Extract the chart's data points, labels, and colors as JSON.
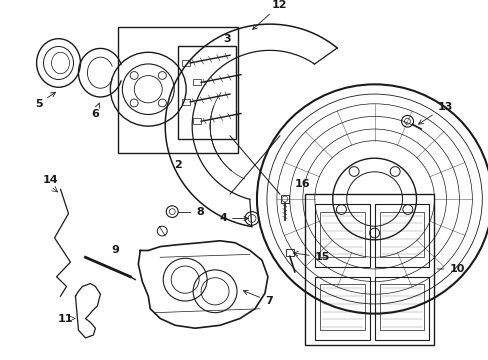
{
  "background_color": "#ffffff",
  "line_color": "#1a1a1a",
  "figsize": [
    4.89,
    3.6
  ],
  "dpi": 100,
  "label_fontsize": 8,
  "arrow_lw": 0.6,
  "component_lw": 0.9
}
